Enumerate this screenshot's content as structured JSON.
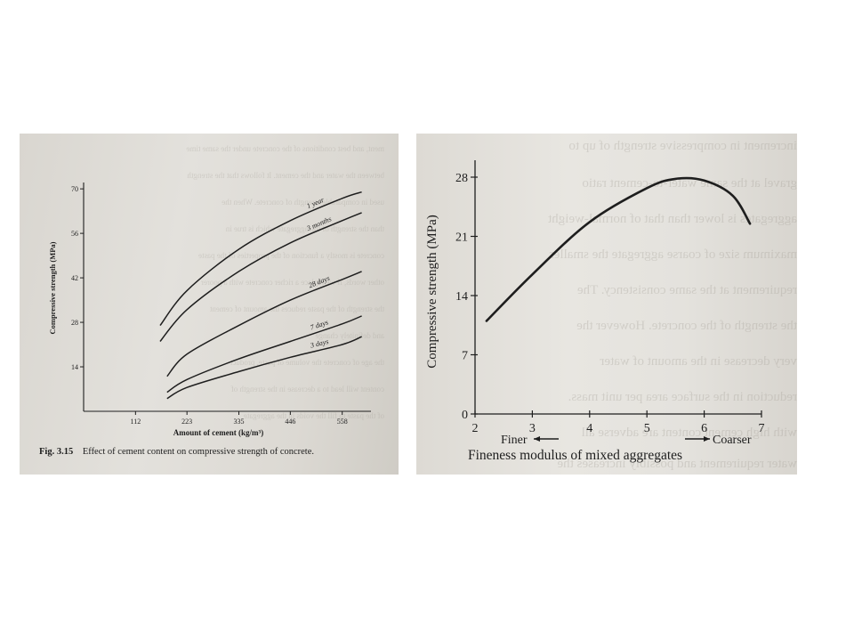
{
  "chart_data": [
    {
      "type": "line",
      "xlabel": "Amount of cement (kg/m³)",
      "ylabel": "Compressive strength (MPa)",
      "x_ticks": [
        112,
        223,
        335,
        446,
        558
      ],
      "y_ticks": [
        14,
        28,
        42,
        56,
        70
      ],
      "xlim": [
        0,
        620
      ],
      "ylim": [
        0,
        72
      ],
      "caption_prefix": "Fig. 3.15",
      "caption": "Effect of cement content on compressive strength of concrete.",
      "series": [
        {
          "name": "1 year",
          "x": [
            165,
            223,
            335,
            446,
            558,
            600
          ],
          "y": [
            27,
            38,
            51,
            60,
            67,
            69
          ]
        },
        {
          "name": "3 months",
          "x": [
            165,
            223,
            335,
            446,
            558,
            600
          ],
          "y": [
            22,
            32,
            44,
            53,
            60,
            62.5
          ]
        },
        {
          "name": "28 days",
          "x": [
            180,
            223,
            335,
            446,
            558,
            600
          ],
          "y": [
            11,
            18,
            27,
            35,
            41.5,
            44
          ]
        },
        {
          "name": "7 days",
          "x": [
            180,
            223,
            335,
            446,
            558,
            600
          ],
          "y": [
            6,
            10,
            16.5,
            22,
            27.5,
            30
          ]
        },
        {
          "name": "3 days",
          "x": [
            180,
            223,
            335,
            446,
            558,
            600
          ],
          "y": [
            4,
            7.5,
            12.5,
            17,
            21,
            23.5
          ]
        }
      ]
    },
    {
      "type": "line",
      "xlabel": "Fineness modulus of mixed aggregates",
      "ylabel": "Compressive strength (MPa)",
      "x_ticks": [
        2,
        3,
        4,
        5,
        6,
        7
      ],
      "y_ticks": [
        0,
        7,
        14,
        21,
        28
      ],
      "xlim": [
        2,
        7
      ],
      "ylim": [
        0,
        30
      ],
      "finer_label": "Finer",
      "coarser_label": "Coarser",
      "series": [
        {
          "x": [
            2.2,
            3.0,
            4.0,
            5.0,
            5.5,
            6.0,
            6.5,
            6.8
          ],
          "y": [
            11,
            16.5,
            22.7,
            26.7,
            27.8,
            27.6,
            25.8,
            22.5
          ]
        }
      ]
    }
  ]
}
